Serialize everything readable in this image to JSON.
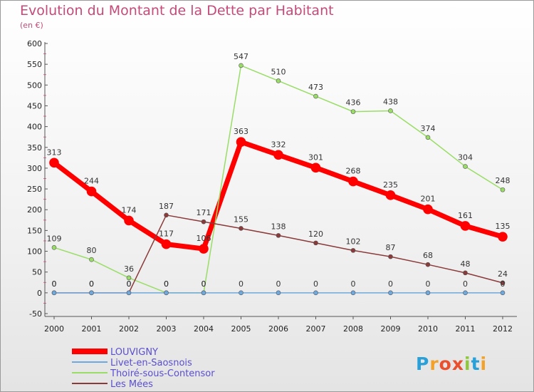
{
  "title": "Evolution du Montant de la Dette par Habitant",
  "subtitle": "(en €)",
  "logo_text": "Proxiti",
  "chart_data": {
    "type": "line",
    "x": [
      2000,
      2001,
      2002,
      2003,
      2004,
      2005,
      2006,
      2007,
      2008,
      2009,
      2010,
      2011,
      2012
    ],
    "ylim": [
      -50,
      600
    ],
    "yticks": [
      -50,
      0,
      50,
      100,
      150,
      200,
      250,
      300,
      350,
      400,
      450,
      500,
      550,
      600
    ],
    "grid": false,
    "legend_position": "bottom-left",
    "series": [
      {
        "name": "LOUVIGNY",
        "color": "#ff0000",
        "width": 7,
        "values": [
          313,
          244,
          174,
          117,
          106,
          363,
          332,
          301,
          268,
          235,
          201,
          161,
          135
        ]
      },
      {
        "name": "Livet-en-Saosnois",
        "color": "#6fa8dc",
        "width": 1.5,
        "values": [
          0,
          0,
          0,
          0,
          0,
          0,
          0,
          0,
          0,
          0,
          0,
          0,
          0
        ]
      },
      {
        "name": "Thoiré-sous-Contensor",
        "color": "#99dd66",
        "width": 1.5,
        "values": [
          109,
          80,
          36,
          0,
          0,
          547,
          510,
          473,
          436,
          438,
          374,
          304,
          248
        ]
      },
      {
        "name": "Les Mées",
        "color": "#8b3a3a",
        "width": 1.5,
        "values": [
          0,
          0,
          0,
          187,
          171,
          155,
          138,
          120,
          102,
          87,
          68,
          48,
          24
        ]
      }
    ]
  }
}
